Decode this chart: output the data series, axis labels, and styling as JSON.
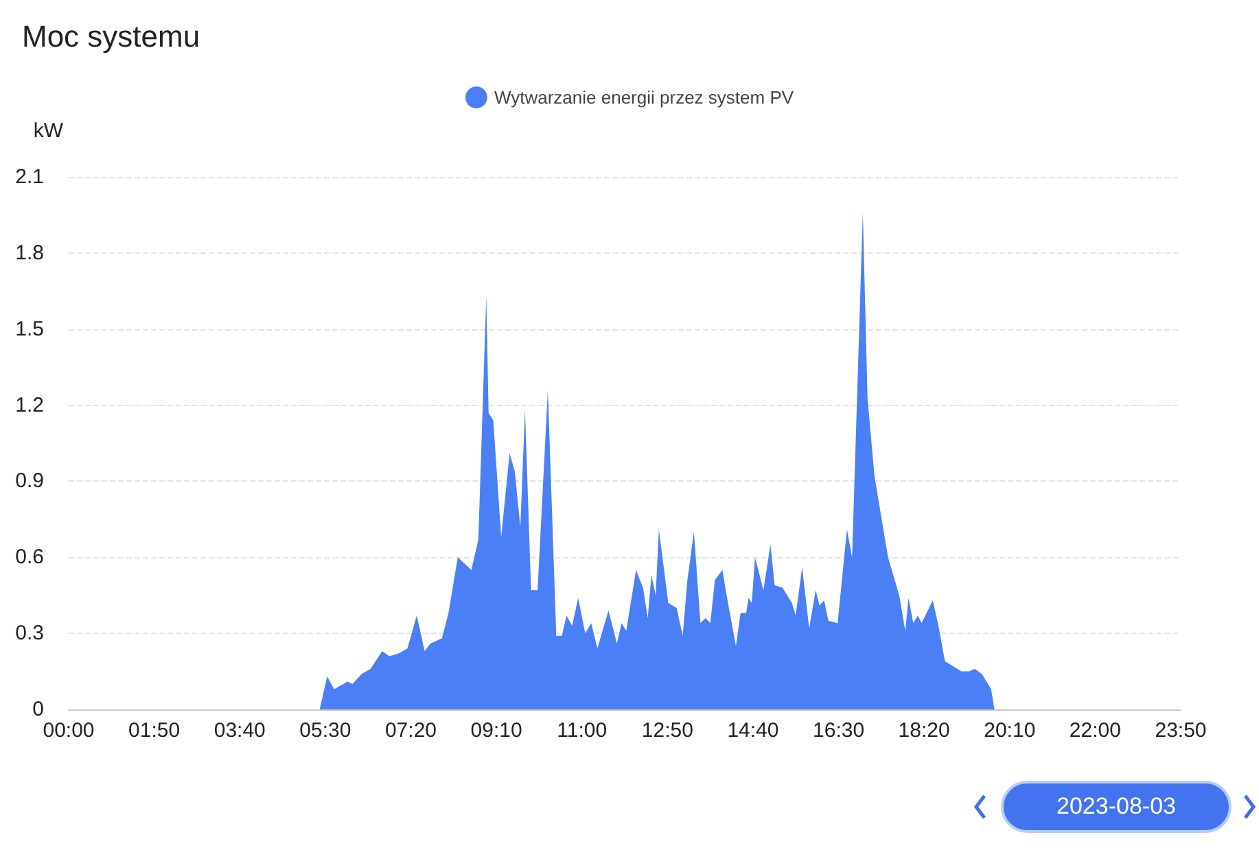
{
  "chart_data": {
    "type": "area",
    "title": "Moc systemu",
    "ylabel": "kW",
    "xlim": [
      0,
      23.8333
    ],
    "xticks": [
      {
        "value": 0,
        "label": "00:00"
      },
      {
        "value": 1.8333,
        "label": "01:50"
      },
      {
        "value": 3.6667,
        "label": "03:40"
      },
      {
        "value": 5.5,
        "label": "05:30"
      },
      {
        "value": 7.3333,
        "label": "07:20"
      },
      {
        "value": 9.1667,
        "label": "09:10"
      },
      {
        "value": 11,
        "label": "11:00"
      },
      {
        "value": 12.8333,
        "label": "12:50"
      },
      {
        "value": 14.6667,
        "label": "14:40"
      },
      {
        "value": 16.5,
        "label": "16:30"
      },
      {
        "value": 18.3333,
        "label": "18:20"
      },
      {
        "value": 20.1667,
        "label": "20:10"
      },
      {
        "value": 22,
        "label": "22:00"
      },
      {
        "value": 23.8333,
        "label": "23:50"
      }
    ],
    "ylim": [
      0,
      2.1
    ],
    "yticks": [
      0,
      0.3,
      0.6,
      0.9,
      1.2,
      1.5,
      1.8,
      2.1
    ],
    "grid": "y",
    "legend": "top",
    "marker": "none",
    "annotations": [
      "2023-08-03"
    ],
    "series": [
      {
        "name": "Wytwarzanie energii przez system PV",
        "color": "#4a7ff5",
        "x": [
          5.38,
          5.54,
          5.69,
          5.98,
          6.08,
          6.28,
          6.47,
          6.72,
          6.87,
          7.06,
          7.26,
          7.46,
          7.63,
          7.75,
          8.0,
          8.14,
          8.34,
          8.63,
          8.78,
          8.95,
          9.0,
          9.1,
          9.27,
          9.45,
          9.56,
          9.68,
          9.78,
          9.91,
          10.05,
          10.27,
          10.45,
          10.57,
          10.67,
          10.79,
          10.92,
          11.07,
          11.2,
          11.33,
          11.57,
          11.75,
          11.85,
          11.95,
          12.16,
          12.31,
          12.41,
          12.49,
          12.58,
          12.65,
          12.85,
          13.03,
          13.16,
          13.26,
          13.4,
          13.54,
          13.65,
          13.75,
          13.85,
          14.01,
          14.13,
          14.3,
          14.4,
          14.52,
          14.57,
          14.64,
          14.71,
          14.89,
          15.04,
          15.13,
          15.3,
          15.5,
          15.58,
          15.72,
          15.87,
          16.01,
          16.09,
          16.19,
          16.28,
          16.48,
          16.68,
          16.79,
          17.02,
          17.12,
          17.27,
          17.56,
          17.8,
          17.93,
          18.0,
          18.1,
          18.2,
          18.28,
          18.52,
          18.64,
          18.78,
          19.13,
          19.3,
          19.42,
          19.57,
          19.77,
          19.84
        ],
        "values": [
          0,
          0.13,
          0.08,
          0.11,
          0.1,
          0.14,
          0.16,
          0.23,
          0.21,
          0.22,
          0.24,
          0.37,
          0.23,
          0.26,
          0.28,
          0.38,
          0.6,
          0.55,
          0.67,
          1.63,
          1.17,
          1.14,
          0.68,
          1.01,
          0.94,
          0.72,
          1.18,
          0.47,
          0.47,
          1.26,
          0.29,
          0.29,
          0.37,
          0.33,
          0.44,
          0.3,
          0.34,
          0.24,
          0.39,
          0.26,
          0.34,
          0.31,
          0.55,
          0.48,
          0.36,
          0.53,
          0.45,
          0.71,
          0.42,
          0.4,
          0.29,
          0.51,
          0.7,
          0.34,
          0.36,
          0.34,
          0.51,
          0.55,
          0.42,
          0.25,
          0.38,
          0.38,
          0.44,
          0.42,
          0.6,
          0.47,
          0.65,
          0.49,
          0.48,
          0.42,
          0.37,
          0.56,
          0.32,
          0.47,
          0.41,
          0.43,
          0.35,
          0.34,
          0.71,
          0.6,
          1.96,
          1.23,
          0.92,
          0.6,
          0.45,
          0.31,
          0.44,
          0.34,
          0.37,
          0.34,
          0.43,
          0.33,
          0.19,
          0.15,
          0.15,
          0.16,
          0.14,
          0.08,
          0
        ]
      }
    ]
  }
}
